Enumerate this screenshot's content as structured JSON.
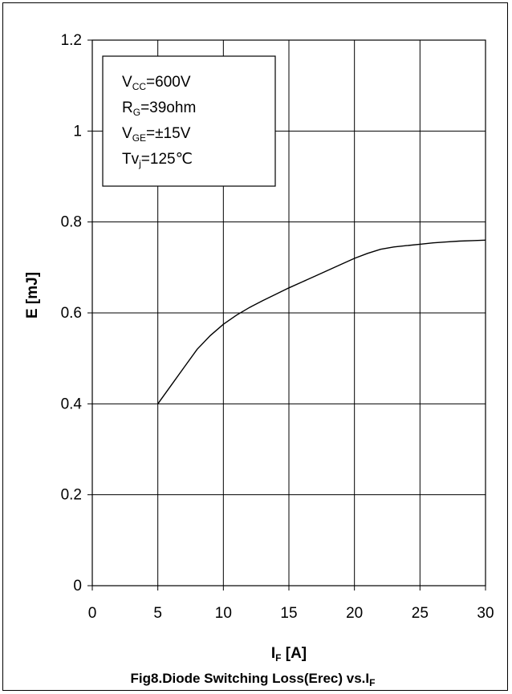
{
  "chart_data": {
    "type": "line",
    "title": "Fig8.Diode Switching Loss(Erec) vs.I",
    "title_subscript": "F",
    "xlabel": {
      "main": "I",
      "sub": "F",
      "unit": "[A]"
    },
    "ylabel": "E [mJ]",
    "xlim": [
      0,
      30
    ],
    "ylim": [
      0,
      1.2
    ],
    "x_ticks": [
      {
        "value": 0,
        "label": "0"
      },
      {
        "value": 5,
        "label": "5"
      },
      {
        "value": 10,
        "label": "10"
      },
      {
        "value": 15,
        "label": "15"
      },
      {
        "value": 20,
        "label": "20"
      },
      {
        "value": 25,
        "label": "25"
      },
      {
        "value": 30,
        "label": "30"
      }
    ],
    "y_ticks": [
      {
        "value": 0,
        "label": "0"
      },
      {
        "value": 0.2,
        "label": "0.2"
      },
      {
        "value": 0.4,
        "label": "0.4"
      },
      {
        "value": 0.6,
        "label": "0.6"
      },
      {
        "value": 0.8,
        "label": "0.8"
      },
      {
        "value": 1,
        "label": "1"
      },
      {
        "value": 1.2,
        "label": "1.2"
      }
    ],
    "grid": true,
    "legend_position": "top-left",
    "conditions": [
      {
        "main": "V",
        "sub": "CC",
        "rest": "=600V"
      },
      {
        "main": "R",
        "sub": "G",
        "rest": "=39ohm"
      },
      {
        "main": "V",
        "sub": "GE",
        "rest": "=±15V"
      },
      {
        "main": "Tv",
        "sub": "j",
        "rest": "=125℃"
      }
    ],
    "series": [
      {
        "color": "#000000",
        "x": [
          5,
          6,
          7,
          8,
          9,
          10,
          11,
          12,
          13,
          14,
          15,
          16,
          17,
          18,
          19,
          20,
          21,
          22,
          23,
          24,
          25,
          26,
          27,
          28,
          29,
          30
        ],
        "y": [
          0.4,
          0.44,
          0.48,
          0.52,
          0.55,
          0.575,
          0.595,
          0.612,
          0.627,
          0.641,
          0.655,
          0.668,
          0.681,
          0.694,
          0.707,
          0.72,
          0.731,
          0.74,
          0.745,
          0.748,
          0.751,
          0.754,
          0.756,
          0.758,
          0.759,
          0.76
        ]
      }
    ]
  }
}
